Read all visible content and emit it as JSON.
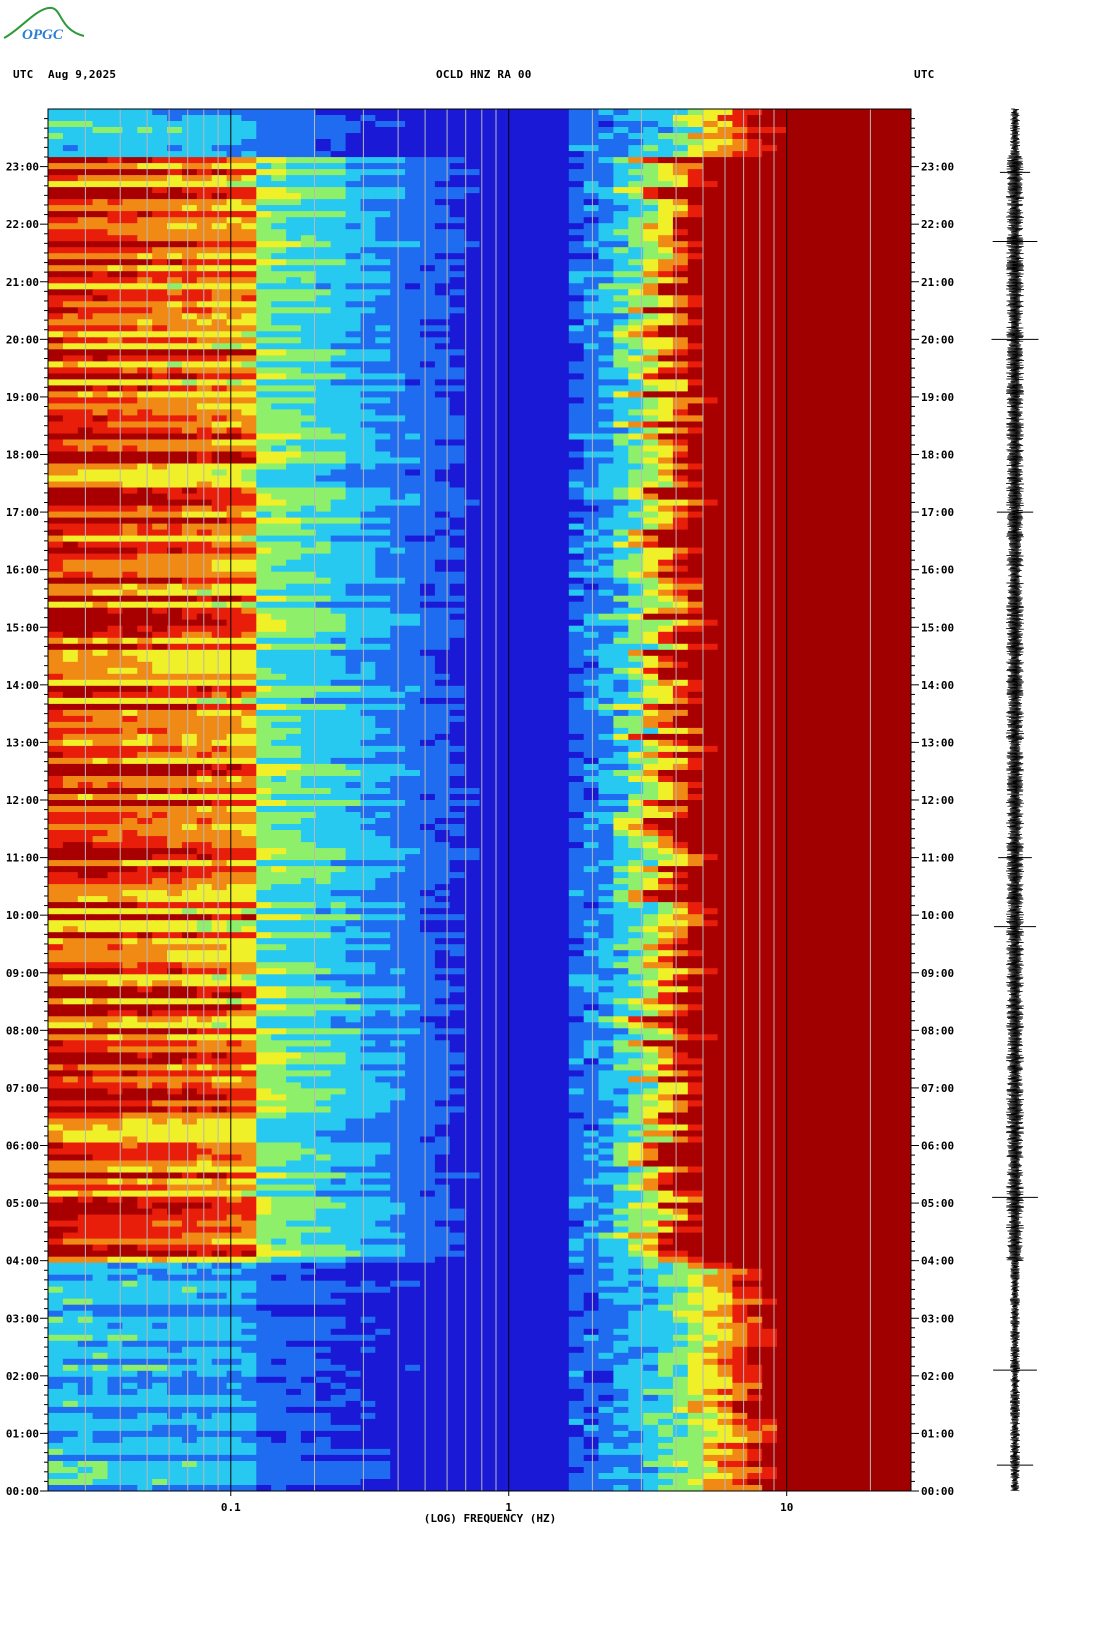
{
  "logo": {
    "text": "OPGC",
    "color": "#2a7fd4",
    "swoosh_color": "#2e9a3a"
  },
  "header": {
    "left_tz": "UTC",
    "date": "Aug 9,2025",
    "station": "OCLD HNZ RA 00",
    "right_tz": "UTC"
  },
  "chart_data": {
    "type": "heatmap",
    "title": "OCLD HNZ RA 00",
    "xlabel": "(LOG) FREQUENCY (HZ)",
    "ylabel": "UTC",
    "x_scale": "log",
    "xlim": [
      0.022,
      28
    ],
    "x_ticks": [
      {
        "value": 0.1,
        "label": "0.1"
      },
      {
        "value": 1,
        "label": "1"
      },
      {
        "value": 10,
        "label": "10"
      }
    ],
    "y_ticks": [
      "00:00",
      "01:00",
      "02:00",
      "03:00",
      "04:00",
      "05:00",
      "06:00",
      "07:00",
      "08:00",
      "09:00",
      "10:00",
      "11:00",
      "12:00",
      "13:00",
      "14:00",
      "15:00",
      "16:00",
      "17:00",
      "18:00",
      "19:00",
      "20:00",
      "21:00",
      "22:00",
      "23:00"
    ],
    "ylim_hours": [
      0,
      24
    ],
    "colormap": [
      "#1a1ad6",
      "#1f6cf0",
      "#27c9f0",
      "#8ef06a",
      "#f0f028",
      "#f08a14",
      "#e81e0a",
      "#a80000"
    ],
    "background_color": "#1030c8",
    "saturated_color": "#a00000",
    "grid_lines_hz": [
      0.03,
      0.04,
      0.05,
      0.06,
      0.07,
      0.08,
      0.09,
      0.1,
      0.2,
      0.3,
      0.4,
      0.5,
      0.6,
      0.7,
      0.8,
      0.9,
      1,
      2,
      3,
      4,
      5,
      6,
      7,
      8,
      9,
      10,
      20
    ],
    "grid_color": "#b8b8b8",
    "major_grid_color": "#000000",
    "activity_onset_hour": 4.0,
    "activity_end_hour": 23.2,
    "trace_axis": "seismogram strip (00:00-24:00)"
  }
}
